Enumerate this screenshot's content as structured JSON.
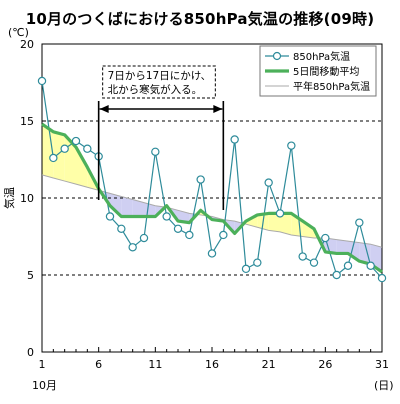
{
  "chart_data": {
    "type": "line",
    "title": "10月のつくばにおける850hPa気温の推移(09時)",
    "ylabel": "気温",
    "yunit": "(℃)",
    "xunit": "(日)",
    "xmonth": "10月",
    "xlim": [
      1,
      31
    ],
    "ylim": [
      0,
      20
    ],
    "yticks": [
      0,
      5,
      10,
      15,
      20
    ],
    "xticks": [
      1,
      6,
      11,
      16,
      21,
      26,
      31
    ],
    "grid": "dashed horizontal at 5, 10, 15",
    "legend_position": "top-right",
    "x": [
      1,
      2,
      3,
      4,
      5,
      6,
      7,
      8,
      9,
      10,
      11,
      12,
      13,
      14,
      15,
      16,
      17,
      18,
      19,
      20,
      21,
      22,
      23,
      24,
      25,
      26,
      27,
      28,
      29,
      30,
      31
    ],
    "series": [
      {
        "name": "850hPa気温",
        "color": "#2e8b9a",
        "marker": "circle",
        "values": [
          17.6,
          12.6,
          13.2,
          13.7,
          13.2,
          12.7,
          8.8,
          8.0,
          6.8,
          7.4,
          13.0,
          8.8,
          8.0,
          7.6,
          11.2,
          6.4,
          7.6,
          13.8,
          5.4,
          5.8,
          11.0,
          9.0,
          13.4,
          6.2,
          5.8,
          7.4,
          5.0,
          5.6,
          8.4,
          5.6,
          4.8
        ]
      },
      {
        "name": "5日間移動平均",
        "color": "#4cb05a",
        "values": [
          14.8,
          14.3,
          14.1,
          13.3,
          12.0,
          10.6,
          9.5,
          8.8,
          8.8,
          8.8,
          8.8,
          9.5,
          8.5,
          8.4,
          9.2,
          8.6,
          8.5,
          7.7,
          8.5,
          8.9,
          9.0,
          9.0,
          9.0,
          8.5,
          8.0,
          6.5,
          6.4,
          6.4,
          5.9,
          5.7,
          5.2
        ]
      },
      {
        "name": "平年850hPa気温",
        "color": "#aaaaaa",
        "values": [
          11.5,
          11.3,
          11.1,
          10.9,
          10.7,
          10.5,
          10.3,
          10.1,
          9.9,
          9.7,
          9.5,
          9.4,
          9.2,
          9.0,
          8.9,
          8.8,
          8.6,
          8.5,
          8.3,
          8.1,
          7.9,
          7.8,
          7.6,
          7.5,
          7.4,
          7.4,
          7.3,
          7.2,
          7.1,
          7.0,
          6.8
        ]
      }
    ],
    "fills": {
      "above_color": "#ffffa8",
      "below_color": "#cfcff2"
    },
    "annotation": {
      "line1": "7日から17日にかけ、",
      "line2": "北から寒気が入る。",
      "x_start": 6,
      "x_end": 17
    }
  }
}
